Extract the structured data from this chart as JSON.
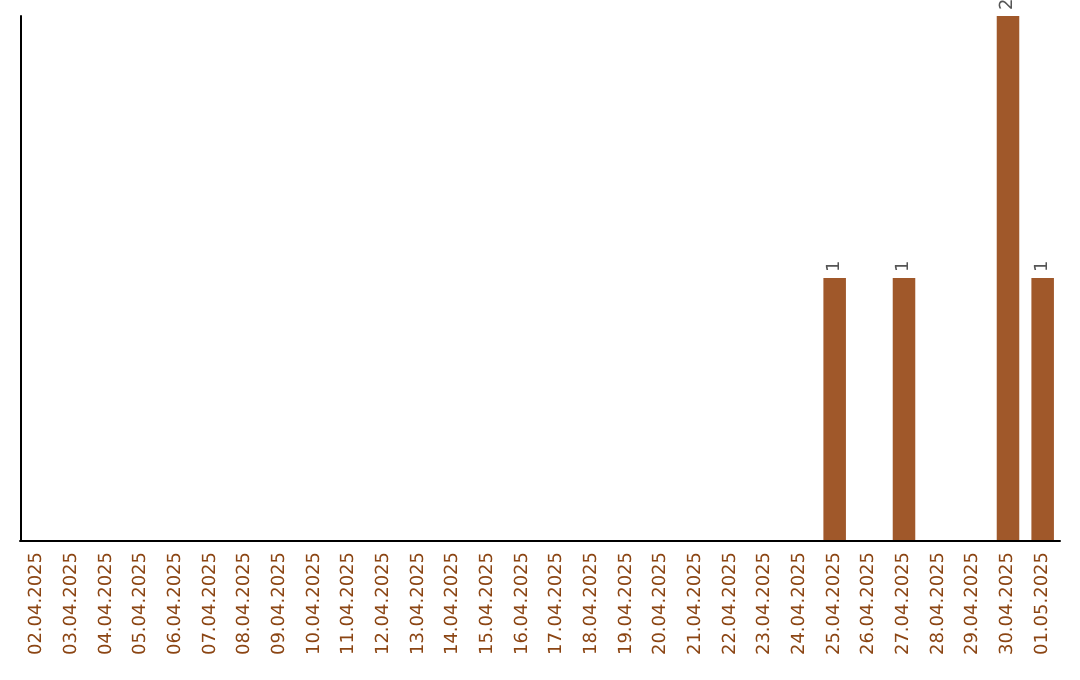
{
  "chart_data": {
    "type": "bar",
    "categories": [
      "02.04.2025",
      "03.04.2025",
      "04.04.2025",
      "05.04.2025",
      "06.04.2025",
      "07.04.2025",
      "08.04.2025",
      "09.04.2025",
      "10.04.2025",
      "11.04.2025",
      "12.04.2025",
      "13.04.2025",
      "14.04.2025",
      "15.04.2025",
      "16.04.2025",
      "17.04.2025",
      "18.04.2025",
      "19.04.2025",
      "20.04.2025",
      "21.04.2025",
      "22.04.2025",
      "23.04.2025",
      "24.04.2025",
      "25.04.2025",
      "26.04.2025",
      "27.04.2025",
      "28.04.2025",
      "29.04.2025",
      "30.04.2025",
      "01.05.2025"
    ],
    "values": [
      null,
      null,
      null,
      null,
      null,
      null,
      null,
      null,
      null,
      null,
      null,
      null,
      null,
      null,
      null,
      null,
      null,
      null,
      null,
      null,
      null,
      null,
      null,
      1,
      null,
      1,
      null,
      null,
      2,
      1
    ],
    "data_labels": true,
    "color": "#a0582a",
    "grid": false
  }
}
